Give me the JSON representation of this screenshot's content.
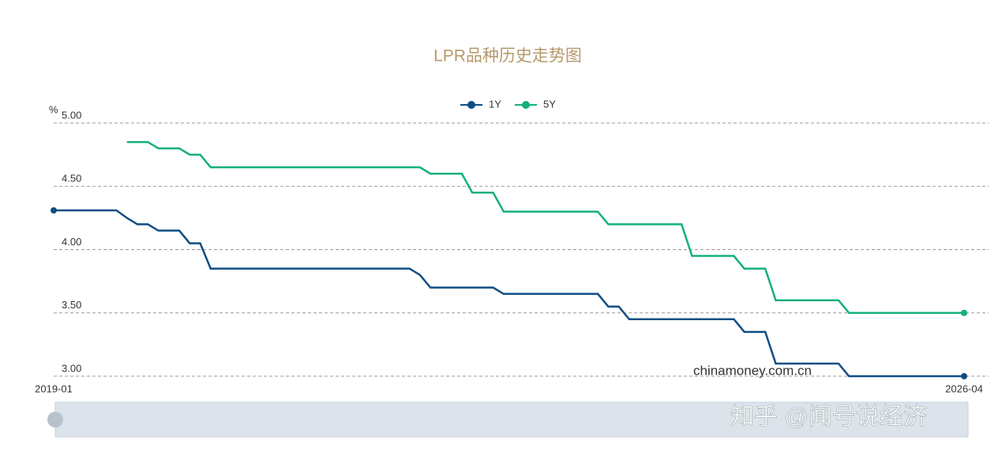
{
  "chart_data": {
    "type": "line",
    "title": "LPR品种历史走势图",
    "y_unit": "%",
    "categories": [
      "2019-01",
      null,
      null,
      null,
      null,
      null,
      null,
      null,
      null,
      null,
      null,
      null,
      null,
      null,
      null,
      null,
      null,
      null,
      null,
      null,
      null,
      null,
      null,
      null,
      null,
      null,
      null,
      null,
      null,
      null,
      null,
      null,
      null,
      null,
      null,
      null,
      null,
      null,
      null,
      null,
      null,
      null,
      null,
      null,
      null,
      null,
      null,
      null,
      null,
      null,
      null,
      null,
      null,
      null,
      null,
      null,
      null,
      null,
      null,
      null,
      null,
      null,
      null,
      null,
      null,
      null,
      null,
      null,
      null,
      null,
      null,
      null,
      null,
      null,
      null,
      null,
      null,
      null,
      null,
      null,
      null,
      null,
      null,
      null,
      null,
      null,
      null,
      "2026-04"
    ],
    "series": [
      {
        "name": "1Y",
        "color": "#0e4d84",
        "values": [
          4.31,
          4.31,
          4.31,
          4.31,
          4.31,
          4.31,
          4.31,
          4.25,
          4.2,
          4.2,
          4.15,
          4.15,
          4.15,
          4.05,
          4.05,
          3.85,
          3.85,
          3.85,
          3.85,
          3.85,
          3.85,
          3.85,
          3.85,
          3.85,
          3.85,
          3.85,
          3.85,
          3.85,
          3.85,
          3.85,
          3.85,
          3.85,
          3.85,
          3.85,
          3.85,
          3.8,
          3.7,
          3.7,
          3.7,
          3.7,
          3.7,
          3.7,
          3.7,
          3.65,
          3.65,
          3.65,
          3.65,
          3.65,
          3.65,
          3.65,
          3.65,
          3.65,
          3.65,
          3.55,
          3.55,
          3.45,
          3.45,
          3.45,
          3.45,
          3.45,
          3.45,
          3.45,
          3.45,
          3.45,
          3.45,
          3.45,
          3.35,
          3.35,
          3.35,
          3.1,
          3.1,
          3.1,
          3.1,
          3.1,
          3.1,
          3.1,
          3,
          3,
          3,
          3,
          3,
          3,
          3,
          3,
          3,
          3,
          3,
          3
        ]
      },
      {
        "name": "5Y",
        "color": "#13b07a",
        "values": [
          null,
          null,
          null,
          null,
          null,
          null,
          null,
          4.85,
          4.85,
          4.85,
          4.8,
          4.8,
          4.8,
          4.75,
          4.75,
          4.65,
          4.65,
          4.65,
          4.65,
          4.65,
          4.65,
          4.65,
          4.65,
          4.65,
          4.65,
          4.65,
          4.65,
          4.65,
          4.65,
          4.65,
          4.65,
          4.65,
          4.65,
          4.65,
          4.65,
          4.65,
          4.6,
          4.6,
          4.6,
          4.6,
          4.45,
          4.45,
          4.45,
          4.3,
          4.3,
          4.3,
          4.3,
          4.3,
          4.3,
          4.3,
          4.3,
          4.3,
          4.3,
          4.2,
          4.2,
          4.2,
          4.2,
          4.2,
          4.2,
          4.2,
          4.2,
          3.95,
          3.95,
          3.95,
          3.95,
          3.95,
          3.85,
          3.85,
          3.85,
          3.6,
          3.6,
          3.6,
          3.6,
          3.6,
          3.6,
          3.6,
          3.5,
          3.5,
          3.5,
          3.5,
          3.5,
          3.5,
          3.5,
          3.5,
          3.5,
          3.5,
          3.5,
          3.5
        ]
      }
    ],
    "ylim": [
      3,
      5
    ],
    "yticks": [
      {
        "value": 3,
        "label": "3.00"
      },
      {
        "value": 3.5,
        "label": "3.50"
      },
      {
        "value": 4,
        "label": "4.00"
      },
      {
        "value": 4.5,
        "label": "4.50"
      },
      {
        "value": 5,
        "label": "5.00"
      }
    ],
    "grid": true,
    "legend": "top",
    "annotations": [
      "chinamoney.com.cn",
      "知乎 @闻号说经济"
    ]
  }
}
